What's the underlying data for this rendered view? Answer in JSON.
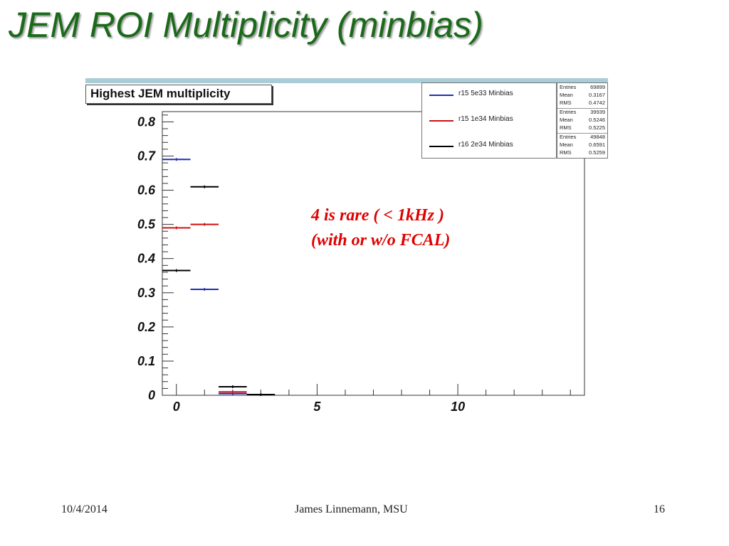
{
  "slide": {
    "title": "JEM ROI Multiplicity (minbias)",
    "footer_date": "10/4/2014",
    "footer_author": "James Linnemann, MSU",
    "footer_page": "16"
  },
  "annotation": {
    "line1": "4 is rare   ( < 1kHz )",
    "line2": "(with or w/o FCAL)"
  },
  "chart_data": {
    "type": "histogram",
    "title": "Highest JEM multiplicity",
    "xlim": [
      -0.5,
      14.5
    ],
    "ylim": [
      0,
      0.83
    ],
    "x_ticks": [
      "0",
      "5",
      "10"
    ],
    "y_ticks": [
      "0",
      "0.1",
      "0.2",
      "0.3",
      "0.4",
      "0.5",
      "0.6",
      "0.7",
      "0.8"
    ],
    "grid": false,
    "legend_position": "top-right",
    "bins": [
      0,
      1,
      2,
      3
    ],
    "series": [
      {
        "name": "r15 5e33 Minbias",
        "color": "#1f2fb0",
        "values": [
          0.69,
          0.31,
          0.005,
          0.0
        ],
        "stats": {
          "Entries": "69899",
          "Mean": "0.3167",
          "RMS": "0.4742"
        }
      },
      {
        "name": "r15 1e34 Minbias",
        "color": "#d01010",
        "values": [
          0.49,
          0.5,
          0.01,
          0.0
        ],
        "stats": {
          "Entries": "39939",
          "Mean": "0.5246",
          "RMS": "0.5225"
        }
      },
      {
        "name": "r16 2e34 Minbias",
        "color": "#000000",
        "values": [
          0.365,
          0.61,
          0.025,
          0.002
        ],
        "stats": {
          "Entries": "49848",
          "Mean": "0.6591",
          "RMS": "0.5259"
        }
      }
    ]
  }
}
